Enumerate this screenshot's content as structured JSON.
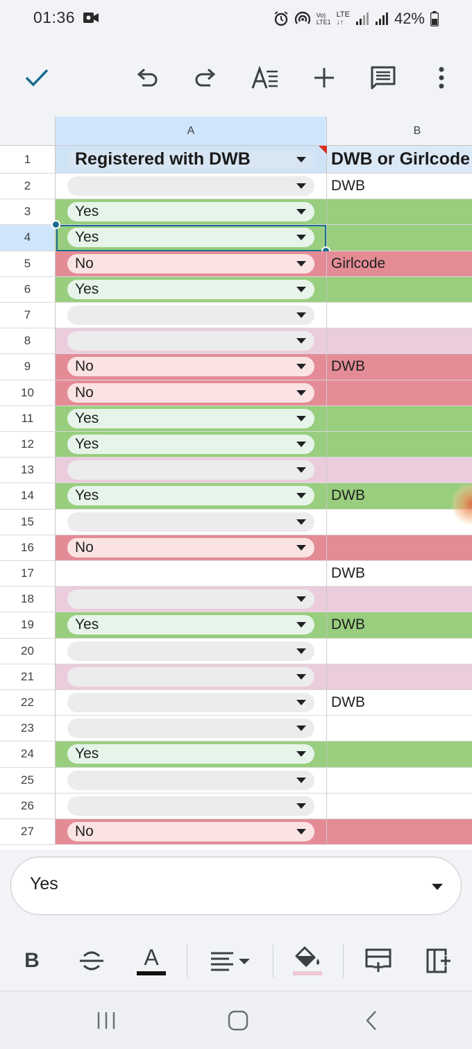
{
  "status_bar": {
    "time": "01:36",
    "battery": "42%",
    "network_label_top": "Vo)",
    "network_label_bottom": "LTE1",
    "lte_label": "LTE"
  },
  "toolbar": {
    "icons": [
      "check-icon",
      "undo-icon",
      "redo-icon",
      "text-format-icon",
      "add-icon",
      "comment-icon",
      "more-vert-icon"
    ]
  },
  "columns": {
    "a": "A",
    "b": "B"
  },
  "header_row": {
    "row_num": "1",
    "a": "Registered with DWB",
    "b": "DWB or Girlcode"
  },
  "rows": [
    {
      "num": "2",
      "a": "",
      "b": "DWB",
      "bg": "white"
    },
    {
      "num": "3",
      "a": "Yes",
      "b": "",
      "bg": "green"
    },
    {
      "num": "4",
      "a": "Yes",
      "b": "",
      "bg": "green",
      "selected": true
    },
    {
      "num": "5",
      "a": "No",
      "b": "Girlcode",
      "bg": "red"
    },
    {
      "num": "6",
      "a": "Yes",
      "b": "",
      "bg": "green"
    },
    {
      "num": "7",
      "a": "",
      "b": "",
      "bg": "white"
    },
    {
      "num": "8",
      "a": "",
      "b": "",
      "bg": "pink"
    },
    {
      "num": "9",
      "a": "No",
      "b": "DWB",
      "bg": "red"
    },
    {
      "num": "10",
      "a": "No",
      "b": "",
      "bg": "red"
    },
    {
      "num": "11",
      "a": "Yes",
      "b": "",
      "bg": "green"
    },
    {
      "num": "12",
      "a": "Yes",
      "b": "",
      "bg": "green"
    },
    {
      "num": "13",
      "a": "",
      "b": "",
      "bg": "pink"
    },
    {
      "num": "14",
      "a": "Yes",
      "b": "DWB",
      "bg": "green"
    },
    {
      "num": "15",
      "a": "",
      "b": "",
      "bg": "white"
    },
    {
      "num": "16",
      "a": "No",
      "b": "",
      "bg": "red"
    },
    {
      "num": "17",
      "a": null,
      "b": "DWB",
      "bg": "white"
    },
    {
      "num": "18",
      "a": "",
      "b": "",
      "bg": "pink"
    },
    {
      "num": "19",
      "a": "Yes",
      "b": "DWB",
      "bg": "green"
    },
    {
      "num": "20",
      "a": "",
      "b": "",
      "bg": "white"
    },
    {
      "num": "21",
      "a": "",
      "b": "",
      "bg": "pink"
    },
    {
      "num": "22",
      "a": "",
      "b": "DWB",
      "bg": "white"
    },
    {
      "num": "23",
      "a": "",
      "b": "",
      "bg": "white"
    },
    {
      "num": "24",
      "a": "Yes",
      "b": "",
      "bg": "green"
    },
    {
      "num": "25",
      "a": "",
      "b": "",
      "bg": "white"
    },
    {
      "num": "26",
      "a": "",
      "b": "",
      "bg": "white"
    },
    {
      "num": "27",
      "a": "No",
      "b": "",
      "bg": "red"
    }
  ],
  "colors": {
    "green": "#98ce7e",
    "red": "#e48c96",
    "pink": "#ebccdc",
    "white": "#ffffff",
    "selection": "#1a6b8f",
    "header_bg": "#cfe5fb"
  },
  "edit_bar": {
    "value": "Yes"
  },
  "format_toolbar": {
    "icons": [
      "bold-icon",
      "strikethrough-icon",
      "text-color-icon",
      "align-icon",
      "fill-color-icon",
      "insert-row-icon",
      "insert-column-icon"
    ],
    "bold_label": "B",
    "text_color_label": "A"
  },
  "nav_bar": {
    "icons": [
      "recents-icon",
      "home-icon",
      "back-icon"
    ]
  }
}
